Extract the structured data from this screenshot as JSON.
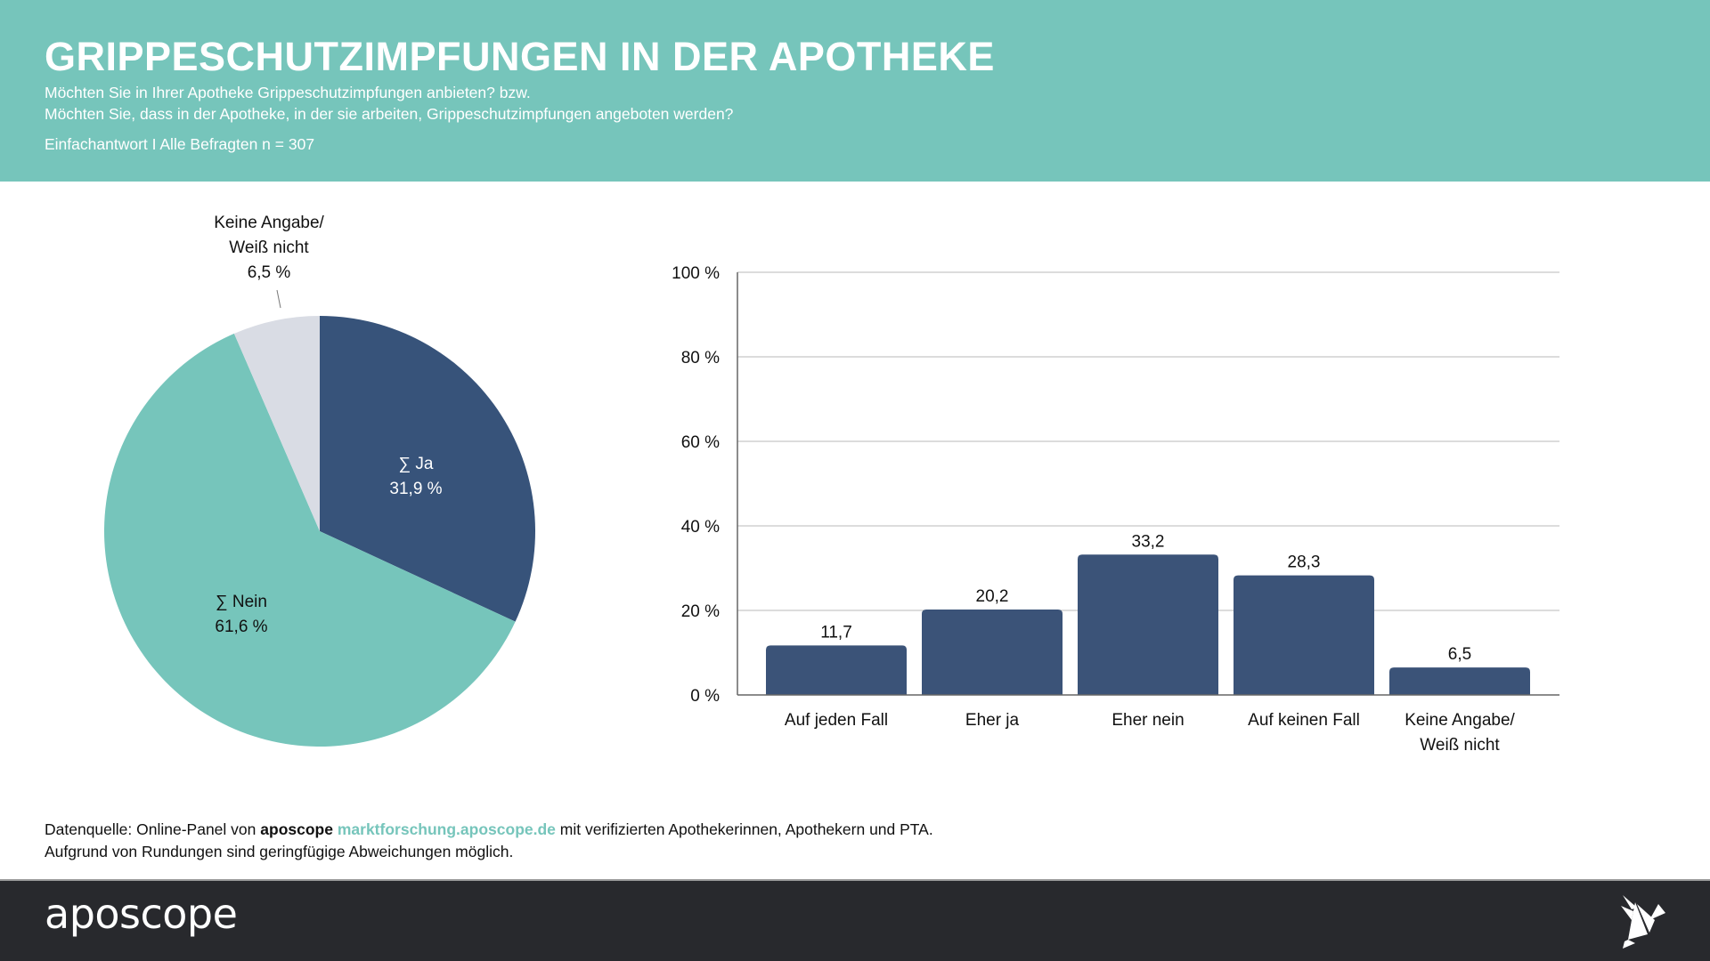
{
  "header": {
    "title": "GRIPPESCHUTZIMPFUNGEN IN DER APOTHEKE",
    "subtitle_line1": "Möchten Sie in Ihrer Apotheke Grippeschutzimpfungen anbieten? bzw.",
    "subtitle_line2": "Möchten Sie, dass in der Apotheke, in der sie arbeiten, Grippeschutzimpfungen angeboten werden?",
    "note": "Einfachantwort I Alle Befragten n = 307"
  },
  "colors": {
    "header_bg": "#76c5bb",
    "ja": "#37537a",
    "nein": "#76c5bb",
    "keine_angabe": "#d9dce4",
    "bar": "#3b5378",
    "footer_bg": "#28292d",
    "link": "#76c5bb"
  },
  "chart_data": [
    {
      "type": "pie",
      "slices": [
        {
          "name": "∑ Ja",
          "value": 31.9,
          "label": "31,9 %",
          "color_key": "ja"
        },
        {
          "name": "∑ Nein",
          "value": 61.6,
          "label": "61,6 %",
          "color_key": "nein"
        },
        {
          "name": "Keine Angabe/ Weiß nicht",
          "label_lines": [
            "Keine Angabe/",
            "Weiß nicht"
          ],
          "value": 6.5,
          "label": "6,5 %",
          "color_key": "keine_angabe"
        }
      ],
      "start": "top",
      "direction": "clockwise"
    },
    {
      "type": "bar",
      "categories": [
        "Auf jeden Fall",
        "Eher ja",
        "Eher nein",
        "Auf keinen Fall",
        "Keine Angabe/ Weiß nicht"
      ],
      "category_lines": [
        [
          "Auf jeden Fall"
        ],
        [
          "Eher ja"
        ],
        [
          "Eher nein"
        ],
        [
          "Auf keinen Fall"
        ],
        [
          "Keine Angabe/",
          "Weiß nicht"
        ]
      ],
      "values": [
        11.7,
        20.2,
        33.2,
        28.3,
        6.5
      ],
      "value_labels": [
        "11,7",
        "20,2",
        "33,2",
        "28,3",
        "6,5"
      ],
      "yticks": [
        0,
        20,
        40,
        60,
        80,
        100
      ],
      "ytick_labels": [
        "0 %",
        "20 %",
        "40 %",
        "60 %",
        "80 %",
        "100 %"
      ],
      "ylim": [
        0,
        100
      ],
      "grid": true,
      "title": "",
      "xlabel": "",
      "ylabel": ""
    }
  ],
  "footer": {
    "source_prefix": "Datenquelle: Online-Panel von",
    "source_brand": "aposcope",
    "source_link": "marktforschung.aposcope.de",
    "source_suffix": "mit verifizierten Apothekerinnen, Apothekern und PTA.",
    "rounding_note": "Aufgrund von Rundungen sind geringfügige Abweichungen möglich.",
    "logo_text": "aposcope",
    "logo_icon": "origami-bird-icon"
  }
}
